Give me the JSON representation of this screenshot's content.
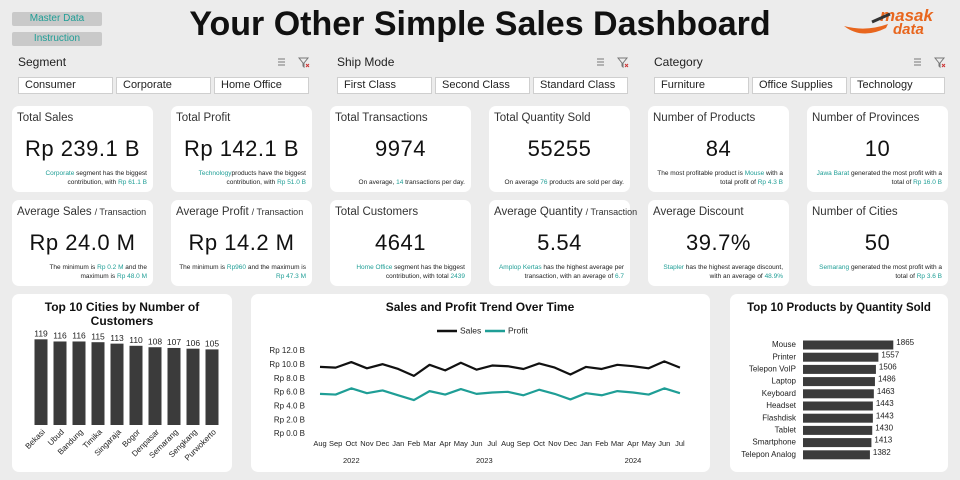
{
  "buttons": [
    "Master Data",
    "Instruction"
  ],
  "title": "Your Other Simple Sales Dashboard",
  "logo": {
    "top": "masak",
    "bottom": "data"
  },
  "filters": [
    {
      "label": "Segment",
      "options": [
        "Consumer",
        "Corporate",
        "Home Office"
      ]
    },
    {
      "label": "Ship Mode",
      "options": [
        "First Class",
        "Second Class",
        "Standard Class"
      ]
    },
    {
      "label": "Category",
      "options": [
        "Furniture",
        "Office Supplies",
        "Technology"
      ]
    }
  ],
  "kpis": [
    {
      "title": "Total Sales",
      "value": "Rp 239.1 B",
      "note": [
        {
          "text": "Corporate",
          "highlight": true
        },
        {
          "text": " segment has the biggest contribution, with "
        },
        {
          "text": "Rp 61.1 B",
          "highlight": true
        }
      ]
    },
    {
      "title": "Total Profit",
      "value": "Rp 142.1 B",
      "note": [
        {
          "text": "Technology",
          "highlight": true
        },
        {
          "text": "products have the biggest contribution, with "
        },
        {
          "text": "Rp 51.0 B",
          "highlight": true
        }
      ]
    },
    {
      "title": "Total Transactions",
      "value": "9974",
      "note": [
        {
          "text": "On average, "
        },
        {
          "text": "14",
          "highlight": true
        },
        {
          "text": " transactions per day."
        }
      ]
    },
    {
      "title": "Total Quantity Sold",
      "value": "55255",
      "note": [
        {
          "text": "On average "
        },
        {
          "text": "76",
          "highlight": true
        },
        {
          "text": " products are sold per day."
        }
      ]
    },
    {
      "title": "Number of Products",
      "value": "84",
      "note": [
        {
          "text": "The most profitable product is "
        },
        {
          "text": "Mouse",
          "highlight": true
        },
        {
          "text": " with a total profit of "
        },
        {
          "text": "Rp 4.3 B",
          "highlight": true
        }
      ]
    },
    {
      "title": "Number of Provinces",
      "value": "10",
      "note": [
        {
          "text": "Jawa Barat",
          "highlight": true
        },
        {
          "text": " generated the most profit with a total of "
        },
        {
          "text": "Rp 16.0 B",
          "highlight": true
        }
      ]
    },
    {
      "title": "Average Sales",
      "title_unit": "/ Transaction",
      "value": "Rp 24.0 M",
      "note": [
        {
          "text": "The minimum is "
        },
        {
          "text": "Rp 0.2 M",
          "highlight": true
        },
        {
          "text": " and the maximum is "
        },
        {
          "text": "Rp 48.0 M",
          "highlight": true
        }
      ]
    },
    {
      "title": "Average Profit",
      "title_unit": "/ Transaction",
      "value": "Rp 14.2 M",
      "note": [
        {
          "text": "The minimum is "
        },
        {
          "text": "Rp960",
          "highlight": true
        },
        {
          "text": " and the maximum is "
        },
        {
          "text": "Rp 47.3 M",
          "highlight": true
        }
      ]
    },
    {
      "title": "Total Customers",
      "value": "4641",
      "note": [
        {
          "text": "Home Office",
          "highlight": true
        },
        {
          "text": " segment has the biggest contribution, with total "
        },
        {
          "text": "2439",
          "highlight": true
        }
      ]
    },
    {
      "title": "Average Quantity",
      "title_unit": "/ Transaction",
      "value": "5.54",
      "note": [
        {
          "text": "Amplop Kertas",
          "highlight": true
        },
        {
          "text": " has the highest average per transaction, with an average of "
        },
        {
          "text": "6.7",
          "highlight": true
        }
      ]
    },
    {
      "title": "Average Discount",
      "value": "39.7%",
      "note": [
        {
          "text": "Stapler",
          "highlight": true
        },
        {
          "text": " has the highest average discount, with an average of "
        },
        {
          "text": "48.9%",
          "highlight": true
        }
      ]
    },
    {
      "title": "Number of Cities",
      "value": "50",
      "note": [
        {
          "text": "Semarang",
          "highlight": true
        },
        {
          "text": " generated the most profit with a total of "
        },
        {
          "text": "Rp 3.6 B",
          "highlight": true
        }
      ]
    }
  ],
  "chart_data": [
    {
      "type": "bar",
      "title": "Top 10 Cities by Number of Customers",
      "categories": [
        "Bekasi",
        "Ubud",
        "Bandung",
        "Timika",
        "Singaraja",
        "Bogor",
        "Denpasar",
        "Semarang",
        "Sengkang",
        "Purwokerto"
      ],
      "values": [
        119,
        116,
        116,
        115,
        113,
        110,
        108,
        107,
        106,
        105
      ],
      "color": "#3b3b3b",
      "ylim": [
        0,
        125
      ]
    },
    {
      "type": "line",
      "title": "Sales and Profit Trend Over Time",
      "years": [
        {
          "label": "2022",
          "months": [
            "Aug",
            "Sep",
            "Oct",
            "Nov",
            "Dec"
          ]
        },
        {
          "label": "2023",
          "months": [
            "Jan",
            "Feb",
            "Mar",
            "Apr",
            "May",
            "Jun",
            "Jul",
            "Aug",
            "Sep",
            "Oct",
            "Nov",
            "Dec"
          ]
        },
        {
          "label": "2024",
          "months": [
            "Jan",
            "Feb",
            "Mar",
            "Apr",
            "May",
            "Jun",
            "Jul"
          ]
        }
      ],
      "series": [
        {
          "name": "Sales",
          "color": "#111111",
          "values": [
            9.7,
            9.6,
            10.4,
            9.5,
            10.1,
            9.4,
            8.4,
            10.0,
            9.2,
            10.3,
            9.3,
            9.9,
            9.8,
            9.4,
            10.2,
            9.6,
            8.6,
            9.7,
            9.4,
            10.0,
            9.8,
            9.5,
            10.5,
            9.6
          ]
        },
        {
          "name": "Profit",
          "color": "#1f9e96",
          "values": [
            5.8,
            5.7,
            6.6,
            5.9,
            6.3,
            5.6,
            4.9,
            6.2,
            5.7,
            6.5,
            5.8,
            6.0,
            6.1,
            5.6,
            6.4,
            5.8,
            5.0,
            5.9,
            5.6,
            6.2,
            6.0,
            5.7,
            6.6,
            5.9
          ]
        }
      ],
      "ylim": [
        0,
        12
      ],
      "yticks": [
        {
          "value": 0,
          "label": "Rp 0.0 B"
        },
        {
          "value": 2,
          "label": "Rp 2.0 B"
        },
        {
          "value": 4,
          "label": "Rp 4.0 B"
        },
        {
          "value": 6,
          "label": "Rp 6.0 B"
        },
        {
          "value": 8,
          "label": "Rp 8.0 B"
        },
        {
          "value": 10,
          "label": "Rp 10.0 B"
        },
        {
          "value": 12,
          "label": "Rp 12.0 B"
        }
      ]
    },
    {
      "type": "hbar",
      "title": "Top 10 Products by Quantity Sold",
      "categories": [
        "Mouse",
        "Printer",
        "Telepon VoIP",
        "Laptop",
        "Keyboard",
        "Headset",
        "Flashdisk",
        "Tablet",
        "Smartphone",
        "Telepon Analog"
      ],
      "values": [
        1865,
        1557,
        1506,
        1486,
        1463,
        1443,
        1443,
        1430,
        1413,
        1382
      ],
      "color": "#3b3b3b",
      "xlim": [
        0,
        1900
      ]
    }
  ]
}
